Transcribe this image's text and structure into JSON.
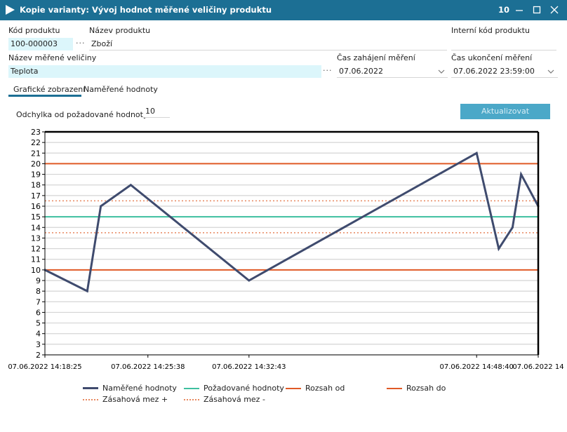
{
  "window": {
    "title": "Kopie varianty: Vývoj hodnot měřené veličiny produktu",
    "counter": "10"
  },
  "form": {
    "product_code_label": "Kód produktu",
    "product_code_value": "100-000003",
    "product_name_label": "Název produktu",
    "product_name_value": "Zboží",
    "internal_code_label": "Interní kód produktu",
    "internal_code_value": "",
    "measured_name_label": "Název měřené veličiny",
    "measured_name_value": "Teplota",
    "start_label": "Čas zahájení měření",
    "start_value": "07.06.2022",
    "end_label": "Čas ukončení měření",
    "end_value": "07.06.2022 23:59:00"
  },
  "tabs": [
    {
      "label": "Grafické zobrazení",
      "active": true
    },
    {
      "label": "Naměřené hodnoty",
      "active": false
    }
  ],
  "deviation": {
    "label": "Odchylka od požadované hodnoty",
    "value": "10"
  },
  "update_button": "Aktualizovat",
  "colors": {
    "titlebar": "#1c6f94",
    "measured": "#3f4b6e",
    "target": "#3ebf9f",
    "range": "#e05a26",
    "intervention": "#e8885f"
  },
  "chart_data": {
    "type": "line",
    "y_ticks": [
      "2",
      "3",
      "4",
      "5",
      "6",
      "7",
      "8",
      "9",
      "10",
      "11",
      "12",
      "13",
      "14",
      "15",
      "16",
      "17",
      "18",
      "19",
      "20",
      "21",
      "22",
      "23"
    ],
    "ylim": [
      2,
      23
    ],
    "x_tick_labels": [
      "07.06.2022 14:18:25",
      "07.06.2022 14:25:38",
      "07.06.2022 14:32:43",
      "07.06.2022 14:48:40",
      "07.06.2022 14"
    ],
    "x_domain": [
      "2022-06-07T14:18:25",
      "2022-06-07T14:52:59"
    ],
    "x_ticks": [
      "2022-06-07T14:18:25",
      "2022-06-07T14:25:38",
      "2022-06-07T14:32:43",
      "2022-06-07T14:48:40",
      "2022-06-07T14:52:59"
    ],
    "series": [
      {
        "name": "Naměřené hodnoty",
        "color": "#3f4b6e",
        "style": "solid-thick",
        "x": [
          "2022-06-07T14:18:25",
          "2022-06-07T14:21:23",
          "2022-06-07T14:22:20",
          "2022-06-07T14:24:26",
          "2022-06-07T14:32:43",
          "2022-06-07T14:48:40",
          "2022-06-07T14:50:13",
          "2022-06-07T14:51:11",
          "2022-06-07T14:51:47",
          "2022-06-07T14:52:59"
        ],
        "values": [
          10,
          8,
          16,
          18,
          9,
          21,
          12,
          14,
          19,
          16
        ]
      },
      {
        "name": "Požadované hodnoty",
        "color": "#3ebf9f",
        "style": "solid",
        "constant": 15
      },
      {
        "name": "Rozsah od",
        "color": "#e05a26",
        "style": "solid",
        "constant": 10
      },
      {
        "name": "Rozsah do",
        "color": "#e05a26",
        "style": "solid",
        "constant": 20
      },
      {
        "name": "Zásahová mez +",
        "color": "#e8885f",
        "style": "dotted",
        "constant": 16.5
      },
      {
        "name": "Zásahová mez -",
        "color": "#e8885f",
        "style": "dotted",
        "constant": 13.5
      }
    ]
  }
}
